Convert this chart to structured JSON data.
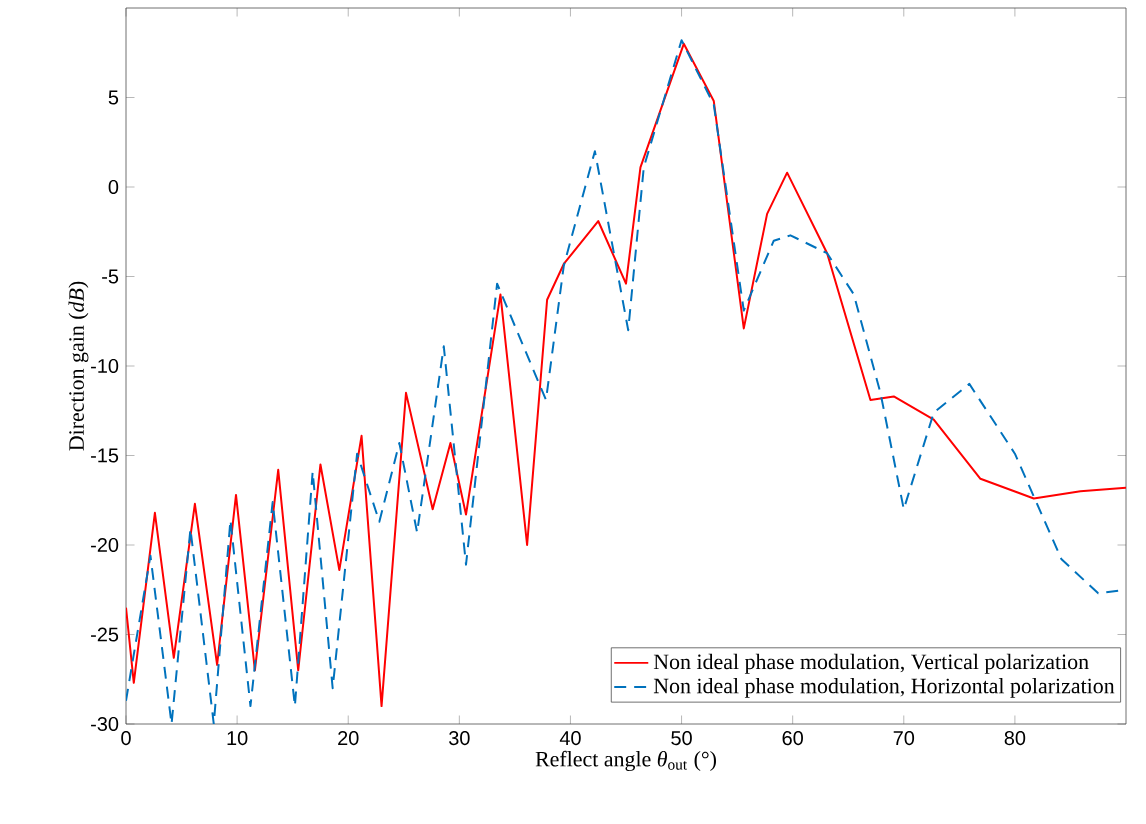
{
  "chart_data": {
    "type": "line",
    "xlabel": "Reflect angle *θ*$_{out}$ (°)",
    "ylabel": "Direction gain (*dB*)",
    "xlim": [
      0,
      90
    ],
    "ylim": [
      -30,
      10
    ],
    "xticks": [
      0,
      10,
      20,
      30,
      40,
      50,
      60,
      70,
      80
    ],
    "yticks": [
      -30,
      -25,
      -20,
      -15,
      -10,
      -5,
      0,
      5
    ],
    "grid": false,
    "legend": "bottom right",
    "series": [
      {
        "name": "Non ideal phase modulation, Vertical polarization",
        "color": "#ff0000",
        "line_style": "solid",
        "x": [
          0,
          0.7,
          2.6,
          4.3,
          6.2,
          8.2,
          9.9,
          11.6,
          13.7,
          15.5,
          17.5,
          19.2,
          21.2,
          23,
          25.2,
          27.6,
          29.2,
          30.6,
          33.7,
          36.1,
          37.9,
          39.4,
          42.5,
          45,
          46.3,
          50.2,
          52.9,
          55.6,
          57.7,
          59.5,
          63.1,
          67,
          69.1,
          72.7,
          76.9,
          81.7,
          85.9,
          90
        ],
        "values": [
          -23.5,
          -27.7,
          -18.2,
          -26.3,
          -17.7,
          -26.7,
          -17.2,
          -27,
          -15.8,
          -27,
          -15.5,
          -21.4,
          -13.9,
          -29,
          -11.5,
          -18,
          -14.3,
          -18.3,
          -6,
          -20,
          -6.3,
          -4.3,
          -1.9,
          -5.4,
          1.1,
          8,
          4.8,
          -7.9,
          -1.5,
          0.8,
          -3.7,
          -11.9,
          -11.7,
          -13,
          -16.3,
          -17.4,
          -17,
          -16.8
        ]
      },
      {
        "name": "Non ideal phase modulation, Horizontal polarization",
        "color": "#0072bd",
        "line_style": "dashed",
        "x": [
          0,
          2.2,
          4.1,
          5.8,
          7.9,
          9.4,
          11.2,
          13.2,
          15.2,
          16.8,
          18.6,
          20.8,
          22.8,
          24.6,
          26.2,
          28.6,
          30.6,
          33.4,
          37.8,
          39.4,
          42.2,
          45.2,
          46.6,
          50,
          52.9,
          55.6,
          58.3,
          59.8,
          63.1,
          65.5,
          67.9,
          70,
          72.7,
          75.9,
          80,
          84.2,
          87.5,
          90
        ],
        "values": [
          -28.7,
          -20.6,
          -30,
          -19.1,
          -30,
          -18.6,
          -29,
          -17.6,
          -29,
          -15.9,
          -28,
          -14.9,
          -18.7,
          -14.3,
          -19.3,
          -8.9,
          -21.1,
          -5.4,
          -11.9,
          -4.4,
          2,
          -8,
          1.1,
          8.2,
          4.6,
          -6.9,
          -3,
          -2.7,
          -3.7,
          -6,
          -11.5,
          -18,
          -12.6,
          -11,
          -14.9,
          -20.8,
          -22.7,
          -22.5
        ]
      }
    ]
  }
}
